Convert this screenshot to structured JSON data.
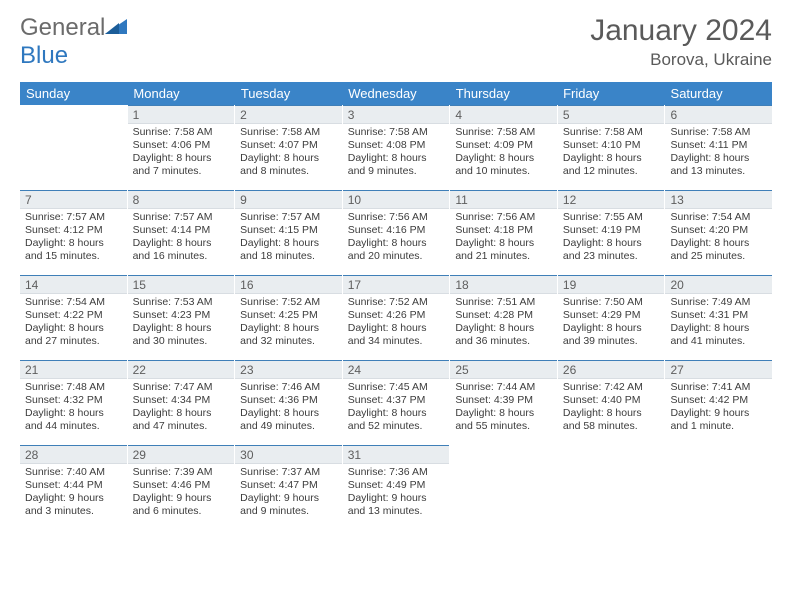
{
  "logo": {
    "word1": "General",
    "word2": "Blue"
  },
  "title": "January 2024",
  "location": "Borova, Ukraine",
  "header_bg": "#3a84c8",
  "daynum_bg": "#e9edf0",
  "daynum_border": "#3f7fb8",
  "day_headers": [
    "Sunday",
    "Monday",
    "Tuesday",
    "Wednesday",
    "Thursday",
    "Friday",
    "Saturday"
  ],
  "weeks": [
    [
      {
        "n": "",
        "sr": "",
        "ss": "",
        "dl": ""
      },
      {
        "n": "1",
        "sr": "Sunrise: 7:58 AM",
        "ss": "Sunset: 4:06 PM",
        "dl": "Daylight: 8 hours and 7 minutes."
      },
      {
        "n": "2",
        "sr": "Sunrise: 7:58 AM",
        "ss": "Sunset: 4:07 PM",
        "dl": "Daylight: 8 hours and 8 minutes."
      },
      {
        "n": "3",
        "sr": "Sunrise: 7:58 AM",
        "ss": "Sunset: 4:08 PM",
        "dl": "Daylight: 8 hours and 9 minutes."
      },
      {
        "n": "4",
        "sr": "Sunrise: 7:58 AM",
        "ss": "Sunset: 4:09 PM",
        "dl": "Daylight: 8 hours and 10 minutes."
      },
      {
        "n": "5",
        "sr": "Sunrise: 7:58 AM",
        "ss": "Sunset: 4:10 PM",
        "dl": "Daylight: 8 hours and 12 minutes."
      },
      {
        "n": "6",
        "sr": "Sunrise: 7:58 AM",
        "ss": "Sunset: 4:11 PM",
        "dl": "Daylight: 8 hours and 13 minutes."
      }
    ],
    [
      {
        "n": "7",
        "sr": "Sunrise: 7:57 AM",
        "ss": "Sunset: 4:12 PM",
        "dl": "Daylight: 8 hours and 15 minutes."
      },
      {
        "n": "8",
        "sr": "Sunrise: 7:57 AM",
        "ss": "Sunset: 4:14 PM",
        "dl": "Daylight: 8 hours and 16 minutes."
      },
      {
        "n": "9",
        "sr": "Sunrise: 7:57 AM",
        "ss": "Sunset: 4:15 PM",
        "dl": "Daylight: 8 hours and 18 minutes."
      },
      {
        "n": "10",
        "sr": "Sunrise: 7:56 AM",
        "ss": "Sunset: 4:16 PM",
        "dl": "Daylight: 8 hours and 20 minutes."
      },
      {
        "n": "11",
        "sr": "Sunrise: 7:56 AM",
        "ss": "Sunset: 4:18 PM",
        "dl": "Daylight: 8 hours and 21 minutes."
      },
      {
        "n": "12",
        "sr": "Sunrise: 7:55 AM",
        "ss": "Sunset: 4:19 PM",
        "dl": "Daylight: 8 hours and 23 minutes."
      },
      {
        "n": "13",
        "sr": "Sunrise: 7:54 AM",
        "ss": "Sunset: 4:20 PM",
        "dl": "Daylight: 8 hours and 25 minutes."
      }
    ],
    [
      {
        "n": "14",
        "sr": "Sunrise: 7:54 AM",
        "ss": "Sunset: 4:22 PM",
        "dl": "Daylight: 8 hours and 27 minutes."
      },
      {
        "n": "15",
        "sr": "Sunrise: 7:53 AM",
        "ss": "Sunset: 4:23 PM",
        "dl": "Daylight: 8 hours and 30 minutes."
      },
      {
        "n": "16",
        "sr": "Sunrise: 7:52 AM",
        "ss": "Sunset: 4:25 PM",
        "dl": "Daylight: 8 hours and 32 minutes."
      },
      {
        "n": "17",
        "sr": "Sunrise: 7:52 AM",
        "ss": "Sunset: 4:26 PM",
        "dl": "Daylight: 8 hours and 34 minutes."
      },
      {
        "n": "18",
        "sr": "Sunrise: 7:51 AM",
        "ss": "Sunset: 4:28 PM",
        "dl": "Daylight: 8 hours and 36 minutes."
      },
      {
        "n": "19",
        "sr": "Sunrise: 7:50 AM",
        "ss": "Sunset: 4:29 PM",
        "dl": "Daylight: 8 hours and 39 minutes."
      },
      {
        "n": "20",
        "sr": "Sunrise: 7:49 AM",
        "ss": "Sunset: 4:31 PM",
        "dl": "Daylight: 8 hours and 41 minutes."
      }
    ],
    [
      {
        "n": "21",
        "sr": "Sunrise: 7:48 AM",
        "ss": "Sunset: 4:32 PM",
        "dl": "Daylight: 8 hours and 44 minutes."
      },
      {
        "n": "22",
        "sr": "Sunrise: 7:47 AM",
        "ss": "Sunset: 4:34 PM",
        "dl": "Daylight: 8 hours and 47 minutes."
      },
      {
        "n": "23",
        "sr": "Sunrise: 7:46 AM",
        "ss": "Sunset: 4:36 PM",
        "dl": "Daylight: 8 hours and 49 minutes."
      },
      {
        "n": "24",
        "sr": "Sunrise: 7:45 AM",
        "ss": "Sunset: 4:37 PM",
        "dl": "Daylight: 8 hours and 52 minutes."
      },
      {
        "n": "25",
        "sr": "Sunrise: 7:44 AM",
        "ss": "Sunset: 4:39 PM",
        "dl": "Daylight: 8 hours and 55 minutes."
      },
      {
        "n": "26",
        "sr": "Sunrise: 7:42 AM",
        "ss": "Sunset: 4:40 PM",
        "dl": "Daylight: 8 hours and 58 minutes."
      },
      {
        "n": "27",
        "sr": "Sunrise: 7:41 AM",
        "ss": "Sunset: 4:42 PM",
        "dl": "Daylight: 9 hours and 1 minute."
      }
    ],
    [
      {
        "n": "28",
        "sr": "Sunrise: 7:40 AM",
        "ss": "Sunset: 4:44 PM",
        "dl": "Daylight: 9 hours and 3 minutes."
      },
      {
        "n": "29",
        "sr": "Sunrise: 7:39 AM",
        "ss": "Sunset: 4:46 PM",
        "dl": "Daylight: 9 hours and 6 minutes."
      },
      {
        "n": "30",
        "sr": "Sunrise: 7:37 AM",
        "ss": "Sunset: 4:47 PM",
        "dl": "Daylight: 9 hours and 9 minutes."
      },
      {
        "n": "31",
        "sr": "Sunrise: 7:36 AM",
        "ss": "Sunset: 4:49 PM",
        "dl": "Daylight: 9 hours and 13 minutes."
      },
      {
        "n": "",
        "sr": "",
        "ss": "",
        "dl": ""
      },
      {
        "n": "",
        "sr": "",
        "ss": "",
        "dl": ""
      },
      {
        "n": "",
        "sr": "",
        "ss": "",
        "dl": ""
      }
    ]
  ]
}
